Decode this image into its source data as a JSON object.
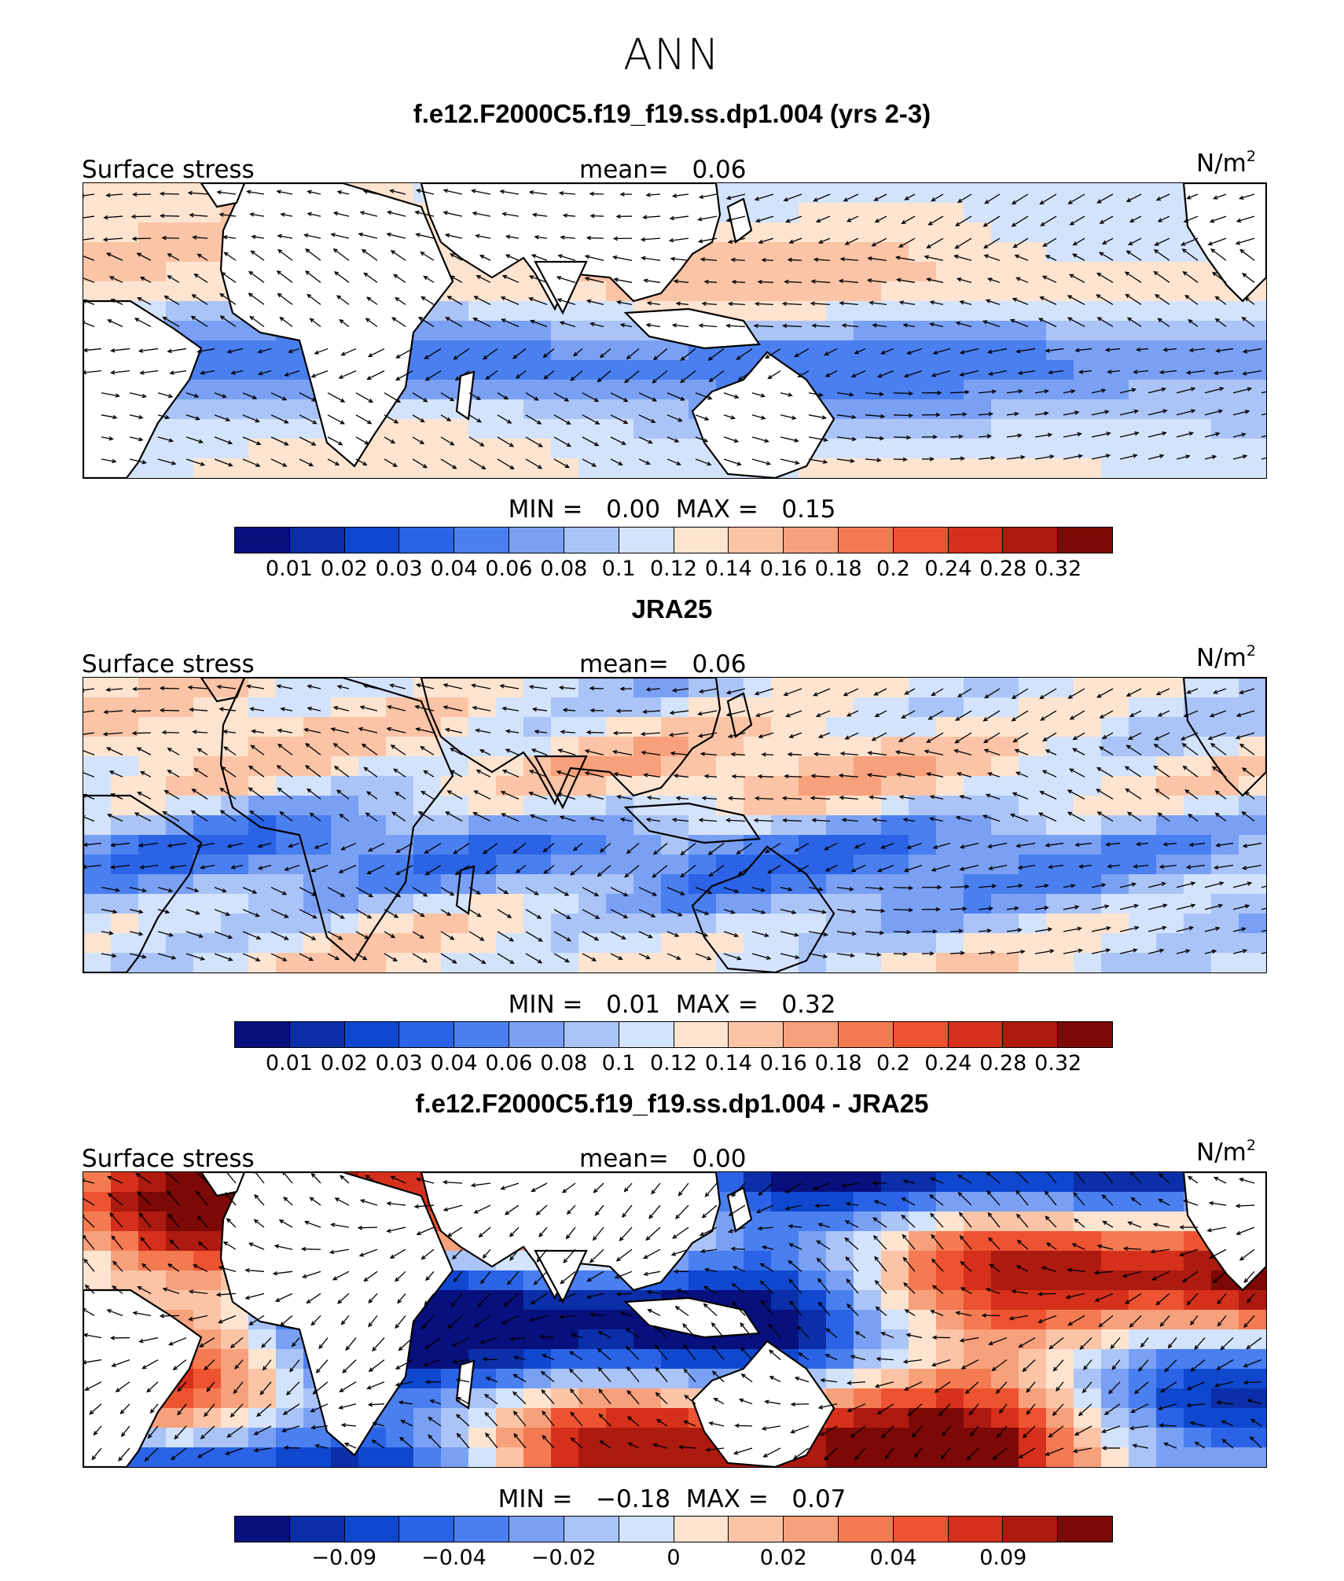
{
  "title": "ANN",
  "colors": {
    "scale": [
      "#08107e",
      "#0a2fa8",
      "#0f48cf",
      "#2b63e6",
      "#4a7ff0",
      "#7aa0f4",
      "#aac4f7",
      "#d3e3fb",
      "#fde4d0",
      "#fbc4a6",
      "#f7a07c",
      "#f47a52",
      "#ed5330",
      "#d5301b",
      "#ad1a10",
      "#7c0905"
    ],
    "land": "#ffffff",
    "coast": "#000000",
    "arrow": "#000000"
  },
  "chart_data": [
    {
      "type": "heatmap",
      "title": "f.e12.F2000C5.f19_f19.ss.dp1.004 (yrs 2-3)",
      "variable": "Surface stress",
      "mean": "0.06",
      "units": "N/m",
      "units_exp": "2",
      "min": "0.00",
      "max": "0.15",
      "levels": [
        "0.01",
        "0.02",
        "0.03",
        "0.04",
        "0.06",
        "0.08",
        "0.1",
        "0.12",
        "0.14",
        "0.16",
        "0.18",
        "0.2",
        "0.24",
        "0.28",
        "0.32"
      ],
      "typical_value": 0.06,
      "ocean_only": true
    },
    {
      "type": "heatmap",
      "title": "JRA25",
      "variable": "Surface stress",
      "mean": "0.06",
      "units": "N/m",
      "units_exp": "2",
      "min": "0.01",
      "max": "0.32",
      "levels": [
        "0.01",
        "0.02",
        "0.03",
        "0.04",
        "0.06",
        "0.08",
        "0.1",
        "0.12",
        "0.14",
        "0.16",
        "0.18",
        "0.2",
        "0.24",
        "0.28",
        "0.32"
      ],
      "typical_value": 0.06,
      "ocean_only": false
    },
    {
      "type": "heatmap",
      "title": "f.e12.F2000C5.f19_f19.ss.dp1.004 - JRA25",
      "variable": "Surface stress",
      "mean": "0.00",
      "units": "N/m",
      "units_exp": "2",
      "min": "−0.18",
      "max": "0.07",
      "levels": [
        "",
        "−0.09",
        "",
        "−0.04",
        "",
        "−0.02",
        "",
        "0",
        "",
        "0.02",
        "",
        "0.04",
        "",
        "0.09",
        ""
      ],
      "typical_value": 0.0,
      "ocean_only": true
    }
  ]
}
